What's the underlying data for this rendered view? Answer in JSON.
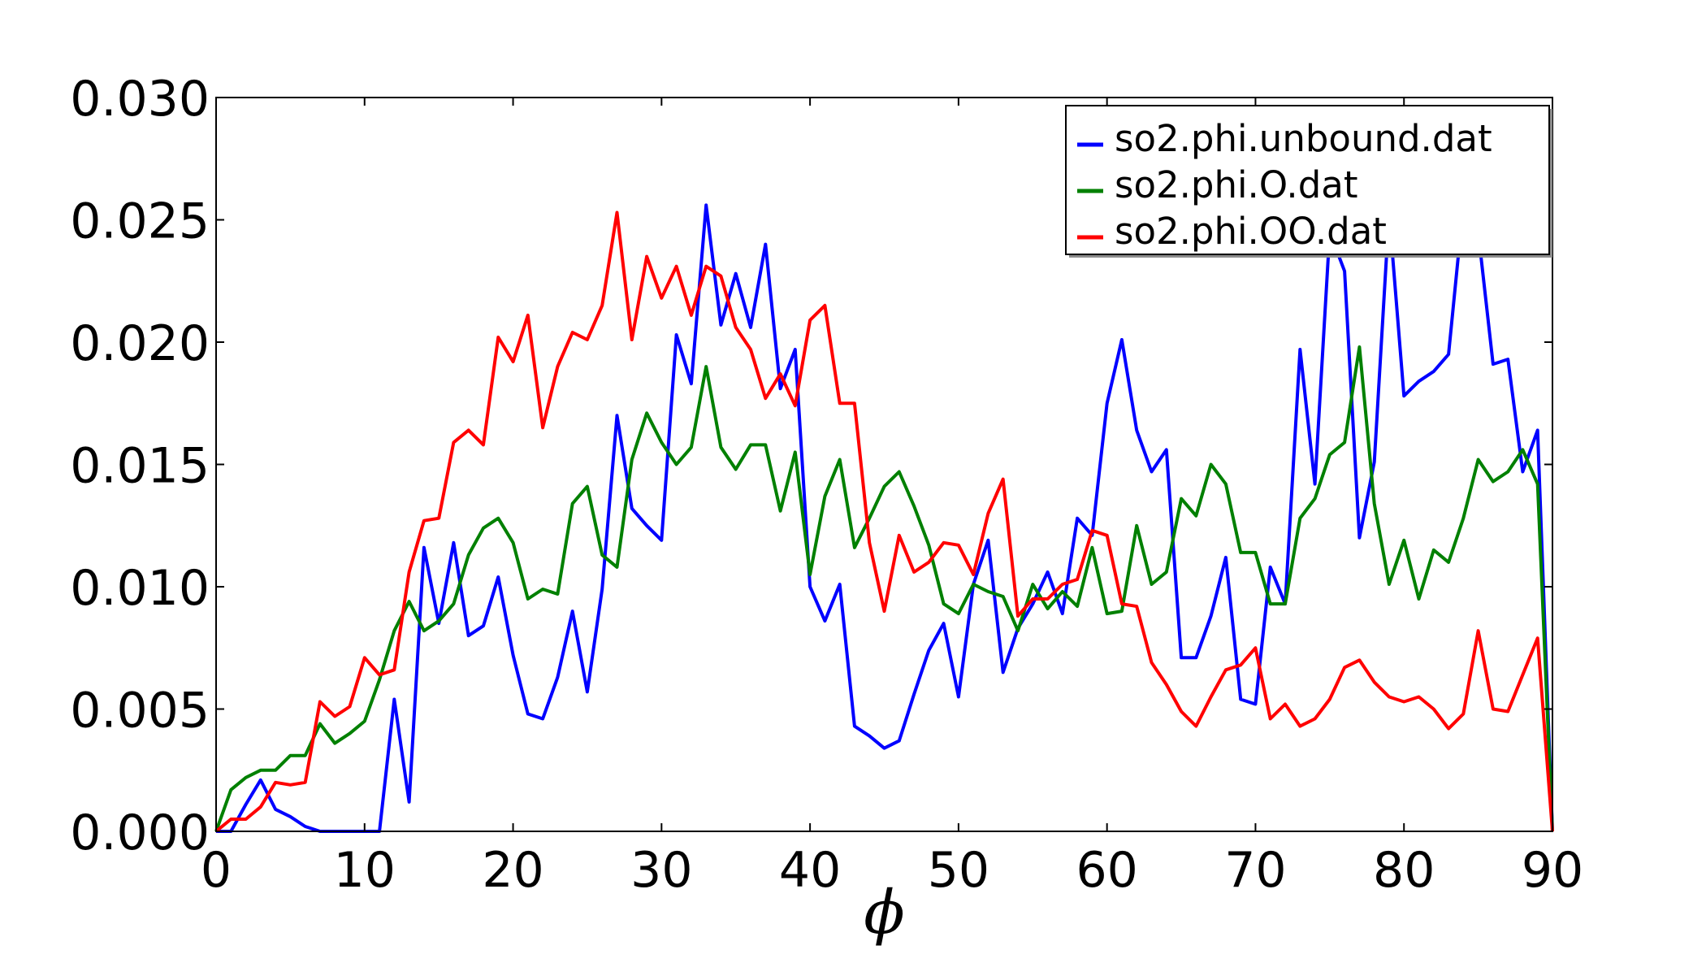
{
  "chart_data": {
    "type": "line",
    "title": "",
    "xlabel": "ϕ",
    "ylabel": "",
    "xlim": [
      0,
      90
    ],
    "ylim": [
      0,
      0.03
    ],
    "grid": false,
    "legend_placement": "top-right",
    "x_ticks": [
      0,
      10,
      20,
      30,
      40,
      50,
      60,
      70,
      80,
      90
    ],
    "x_tick_labels": [
      "0",
      "10",
      "20",
      "30",
      "40",
      "50",
      "60",
      "70",
      "80",
      "90"
    ],
    "y_ticks": [
      0,
      0.005,
      0.01,
      0.015,
      0.02,
      0.025,
      0.03
    ],
    "y_tick_labels": [
      "0.000",
      "0.005",
      "0.010",
      "0.015",
      "0.020",
      "0.025",
      "0.030"
    ],
    "x": [
      0,
      1,
      2,
      3,
      4,
      5,
      6,
      7,
      8,
      9,
      10,
      11,
      12,
      13,
      14,
      15,
      16,
      17,
      18,
      19,
      20,
      21,
      22,
      23,
      24,
      25,
      26,
      27,
      28,
      29,
      30,
      31,
      32,
      33,
      34,
      35,
      36,
      37,
      38,
      39,
      40,
      41,
      42,
      43,
      44,
      45,
      46,
      47,
      48,
      49,
      50,
      51,
      52,
      53,
      54,
      55,
      56,
      57,
      58,
      59,
      60,
      61,
      62,
      63,
      64,
      65,
      66,
      67,
      68,
      69,
      70,
      71,
      72,
      73,
      74,
      75,
      76,
      77,
      78,
      79,
      80,
      81,
      82,
      83,
      84,
      85,
      86,
      87,
      88,
      89,
      90
    ],
    "series": [
      {
        "name": "so2.phi.unbound.dat",
        "color": "#0000ff",
        "values": [
          0,
          0,
          0.0011,
          0.0021,
          0.0009,
          0.0006,
          0.0002,
          0,
          0,
          0,
          0,
          0,
          0.0054,
          0.0012,
          0.0116,
          0.0085,
          0.0118,
          0.008,
          0.0084,
          0.0104,
          0.0072,
          0.0048,
          0.0046,
          0.0063,
          0.009,
          0.0057,
          0.0099,
          0.017,
          0.0132,
          0.0125,
          0.0119,
          0.0203,
          0.0183,
          0.0256,
          0.0207,
          0.0228,
          0.0206,
          0.024,
          0.0181,
          0.0197,
          0.01,
          0.0086,
          0.0101,
          0.0043,
          0.0039,
          0.0034,
          0.0037,
          0.0056,
          0.0074,
          0.0085,
          0.0055,
          0.0101,
          0.0119,
          0.0065,
          0.0083,
          0.0093,
          0.0106,
          0.0089,
          0.0128,
          0.0121,
          0.0175,
          0.0201,
          0.0164,
          0.0147,
          0.0156,
          0.0071,
          0.0071,
          0.0088,
          0.0112,
          0.0054,
          0.0052,
          0.0108,
          0.0093,
          0.0197,
          0.0142,
          0.0245,
          0.0229,
          0.012,
          0.0151,
          0.0253,
          0.0178,
          0.0184,
          0.0188,
          0.0195,
          0.0256,
          0.0245,
          0.0191,
          0.0193,
          0.0147,
          0.0164,
          0
        ]
      },
      {
        "name": "so2.phi.O.dat",
        "color": "#008000",
        "values": [
          0,
          0.0017,
          0.0022,
          0.0025,
          0.0025,
          0.0031,
          0.0031,
          0.0044,
          0.0036,
          0.004,
          0.0045,
          0.0062,
          0.0082,
          0.0094,
          0.0082,
          0.0086,
          0.0093,
          0.0113,
          0.0124,
          0.0128,
          0.0118,
          0.0095,
          0.0099,
          0.0097,
          0.0134,
          0.0141,
          0.0113,
          0.0108,
          0.0152,
          0.0171,
          0.0159,
          0.015,
          0.0157,
          0.019,
          0.0157,
          0.0148,
          0.0158,
          0.0158,
          0.0131,
          0.0155,
          0.0105,
          0.0137,
          0.0152,
          0.0116,
          0.0128,
          0.0141,
          0.0147,
          0.0133,
          0.0117,
          0.0093,
          0.0089,
          0.0101,
          0.0098,
          0.0096,
          0.0082,
          0.0101,
          0.0091,
          0.0098,
          0.0092,
          0.0116,
          0.0089,
          0.009,
          0.0125,
          0.0101,
          0.0106,
          0.0136,
          0.0129,
          0.015,
          0.0142,
          0.0114,
          0.0114,
          0.0093,
          0.0093,
          0.0128,
          0.0136,
          0.0154,
          0.0159,
          0.0198,
          0.0134,
          0.0101,
          0.0119,
          0.0095,
          0.0115,
          0.011,
          0.0128,
          0.0152,
          0.0143,
          0.0147,
          0.0156,
          0.0142,
          0
        ]
      },
      {
        "name": "so2.phi.OO.dat",
        "color": "#ff0000",
        "values": [
          0,
          0.0005,
          0.0005,
          0.001,
          0.002,
          0.0019,
          0.002,
          0.0053,
          0.0047,
          0.0051,
          0.0071,
          0.0064,
          0.0066,
          0.0106,
          0.0127,
          0.0128,
          0.0159,
          0.0164,
          0.0158,
          0.0202,
          0.0192,
          0.0211,
          0.0165,
          0.019,
          0.0204,
          0.0201,
          0.0215,
          0.0253,
          0.0201,
          0.0235,
          0.0218,
          0.0231,
          0.0211,
          0.0231,
          0.0227,
          0.0206,
          0.0197,
          0.0177,
          0.0187,
          0.0174,
          0.0209,
          0.0215,
          0.0175,
          0.0175,
          0.0118,
          0.009,
          0.0121,
          0.0106,
          0.011,
          0.0118,
          0.0117,
          0.0105,
          0.013,
          0.0144,
          0.0088,
          0.0095,
          0.0095,
          0.0101,
          0.0103,
          0.0123,
          0.0121,
          0.0093,
          0.0092,
          0.0069,
          0.006,
          0.0049,
          0.0043,
          0.0055,
          0.0066,
          0.0068,
          0.0075,
          0.0046,
          0.0052,
          0.0043,
          0.0046,
          0.0054,
          0.0067,
          0.007,
          0.0061,
          0.0055,
          0.0053,
          0.0055,
          0.005,
          0.0042,
          0.0048,
          0.0082,
          0.005,
          0.0049,
          0.0064,
          0.0079,
          0
        ]
      }
    ]
  }
}
